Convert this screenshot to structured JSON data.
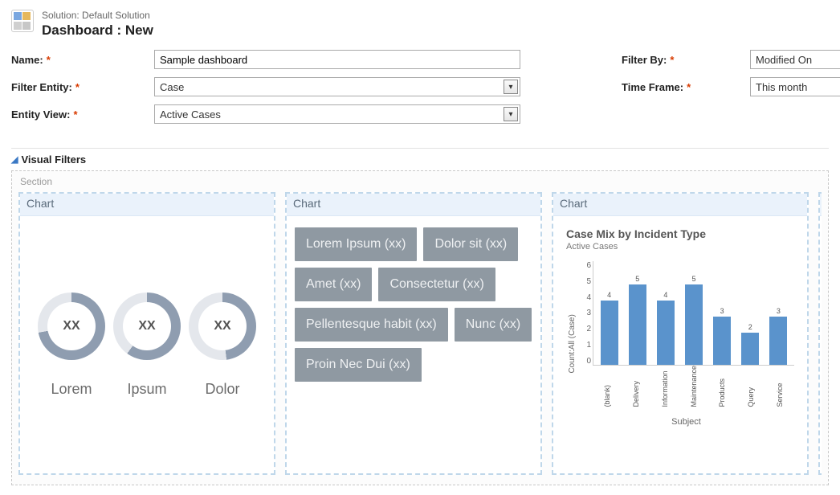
{
  "header": {
    "breadcrumb": "Solution: Default Solution",
    "title": "Dashboard : New"
  },
  "form": {
    "name_label": "Name:",
    "name_value": "Sample dashboard",
    "filter_entity_label": "Filter Entity:",
    "filter_entity_value": "Case",
    "entity_view_label": "Entity View:",
    "entity_view_value": "Active Cases",
    "filter_by_label": "Filter By:",
    "filter_by_value": "Modified On",
    "time_frame_label": "Time Frame:",
    "time_frame_value": "This month"
  },
  "visual_filters": {
    "title": "Visual Filters",
    "section_label": "Section",
    "tile_header": "Chart"
  },
  "chart1": {
    "type": "donut-row",
    "center_text": "XX",
    "items": [
      {
        "label": "Lorem",
        "fill_pct": 72,
        "color": "#8f9db0",
        "track": "#e4e7ec"
      },
      {
        "label": "Ipsum",
        "fill_pct": 60,
        "color": "#8f9db0",
        "track": "#e4e7ec"
      },
      {
        "label": "Dolor",
        "fill_pct": 48,
        "color": "#8f9db0",
        "track": "#e4e7ec"
      }
    ]
  },
  "chart2": {
    "type": "tag-cloud",
    "tile_bg": "#8f99a2",
    "tile_fg": "#eef0f2",
    "tags": [
      "Lorem Ipsum (xx)",
      "Dolor sit (xx)",
      "Amet (xx)",
      "Consectetur  (xx)",
      "Pellentesque habit  (xx)",
      "Nunc (xx)",
      "Proin Nec Dui (xx)"
    ]
  },
  "chart3": {
    "type": "bar",
    "title": "Case Mix by Incident Type",
    "subtitle": "Active Cases",
    "ylabel": "Count:All (Case)",
    "xlabel": "Subject",
    "ylim_max": 6,
    "ytick_step": 1,
    "bar_color": "#5a93cc",
    "background_color": "#ffffff",
    "categories": [
      "(blank)",
      "Delivery",
      "Information",
      "Maintenance",
      "Products",
      "Query",
      "Service"
    ],
    "values": [
      4,
      5,
      4,
      5,
      3,
      2,
      3
    ]
  }
}
